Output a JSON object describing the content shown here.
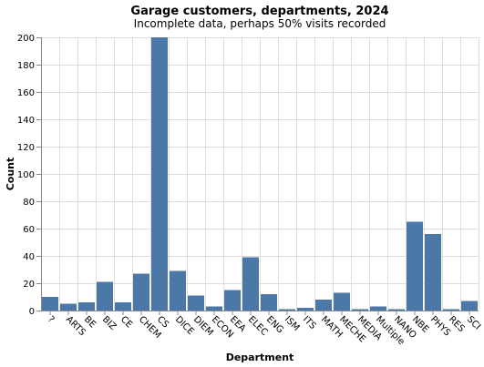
{
  "chart_data": {
    "type": "bar",
    "title": "Garage customers, departments, 2024",
    "subtitle": "Incomplete data, perhaps 50% visits recorded",
    "xlabel": "Department",
    "ylabel": "Count",
    "ylim": [
      0,
      200
    ],
    "yticks": [
      0,
      20,
      40,
      60,
      80,
      100,
      120,
      140,
      160,
      180,
      200
    ],
    "grid": true,
    "legend": "none",
    "bar_color": "#4c78a8",
    "categories": [
      "?",
      "ARTS",
      "BE",
      "BIZ",
      "CE",
      "CHEM",
      "CS",
      "DICE",
      "DIEM",
      "ECON",
      "EEA",
      "ELEC",
      "ENG",
      "ISM",
      "ITS",
      "MATH",
      "MECHE",
      "MEDIA",
      "Multiple",
      "NANO",
      "NBE",
      "PHYS",
      "RES",
      "SCI"
    ],
    "values": [
      10,
      5,
      6,
      21,
      6,
      27,
      200,
      29,
      11,
      3,
      15,
      39,
      12,
      1,
      2,
      8,
      13,
      1,
      3,
      1,
      65,
      56,
      1,
      7
    ]
  }
}
